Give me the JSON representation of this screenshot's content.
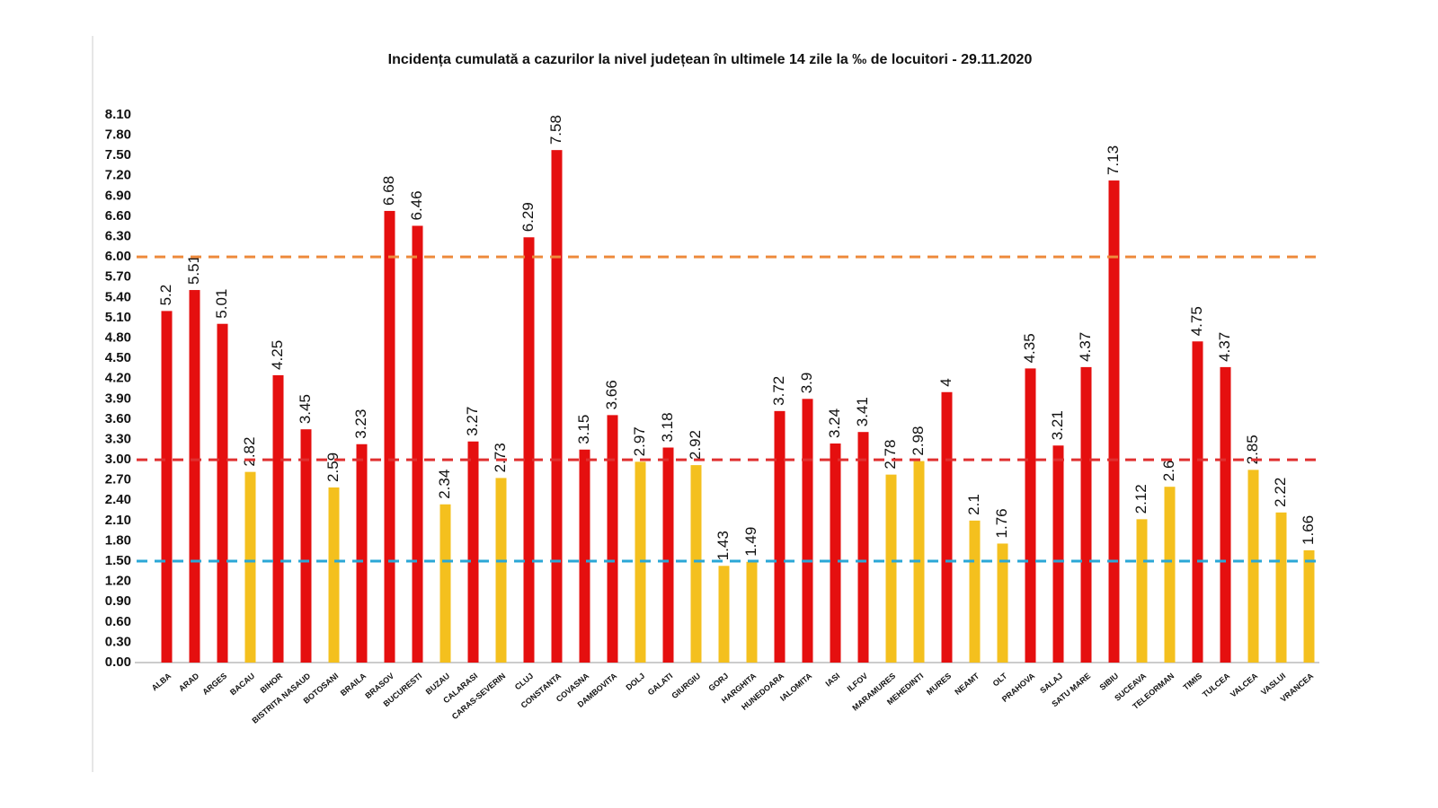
{
  "chart_data": {
    "type": "bar",
    "title": "Incidența cumulată a cazurilor la nivel județean în ultimele 14 zile la ‰ de locuitori - 29.11.2020",
    "categories": [
      "ALBA",
      "ARAD",
      "ARGES",
      "BACAU",
      "BIHOR",
      "BISTRITA NASAUD",
      "BOTOSANI",
      "BRAILA",
      "BRASOV",
      "BUCURESTI",
      "BUZAU",
      "CALARASI",
      "CARAS-SEVERIN",
      "CLUJ",
      "CONSTANTA",
      "COVASNA",
      "DAMBOVITA",
      "DOLJ",
      "GALATI",
      "GIURGIU",
      "GORJ",
      "HARGHITA",
      "HUNEDOARA",
      "IALOMITA",
      "IASI",
      "ILFOV",
      "MARAMURES",
      "MEHEDINTI",
      "MURES",
      "NEAMT",
      "OLT",
      "PRAHOVA",
      "SALAJ",
      "SATU MARE",
      "SIBIU",
      "SUCEAVA",
      "TELEORMAN",
      "TIMIS",
      "TULCEA",
      "VALCEA",
      "VASLUI",
      "VRANCEA"
    ],
    "values": [
      5.2,
      5.51,
      5.01,
      2.82,
      4.25,
      3.45,
      2.59,
      3.23,
      6.68,
      6.46,
      2.34,
      3.27,
      2.73,
      6.29,
      7.58,
      3.15,
      3.66,
      2.97,
      3.18,
      2.92,
      1.43,
      1.49,
      3.72,
      3.9,
      3.24,
      3.41,
      2.78,
      2.98,
      4,
      2.1,
      1.76,
      4.35,
      3.21,
      4.37,
      7.13,
      2.12,
      2.6,
      4.75,
      4.37,
      2.85,
      2.22,
      1.66
    ],
    "colors": [
      "#e50f0f",
      "#e50f0f",
      "#e50f0f",
      "#f4c01e",
      "#e50f0f",
      "#e50f0f",
      "#f4c01e",
      "#e50f0f",
      "#e50f0f",
      "#e50f0f",
      "#f4c01e",
      "#e50f0f",
      "#f4c01e",
      "#e50f0f",
      "#e50f0f",
      "#e50f0f",
      "#e50f0f",
      "#f4c01e",
      "#e50f0f",
      "#f4c01e",
      "#f4c01e",
      "#f4c01e",
      "#e50f0f",
      "#e50f0f",
      "#e50f0f",
      "#e50f0f",
      "#f4c01e",
      "#f4c01e",
      "#e50f0f",
      "#f4c01e",
      "#f4c01e",
      "#e50f0f",
      "#e50f0f",
      "#e50f0f",
      "#e50f0f",
      "#f4c01e",
      "#f4c01e",
      "#e50f0f",
      "#e50f0f",
      "#f4c01e",
      "#f4c01e",
      "#f4c01e"
    ],
    "ylim": [
      0,
      8.1
    ],
    "yticks": [
      {
        "value": 0,
        "label": "0.00"
      },
      {
        "value": 0.3,
        "label": "0.30"
      },
      {
        "value": 0.6,
        "label": "0.60"
      },
      {
        "value": 0.9,
        "label": "0.90"
      },
      {
        "value": 1.2,
        "label": "1.20"
      },
      {
        "value": 1.5,
        "label": "1.50"
      },
      {
        "value": 1.8,
        "label": "1.80"
      },
      {
        "value": 2.1,
        "label": "2.10"
      },
      {
        "value": 2.4,
        "label": "2.40"
      },
      {
        "value": 2.7,
        "label": "2.70"
      },
      {
        "value": 3,
        "label": "3.00"
      },
      {
        "value": 3.3,
        "label": "3.30"
      },
      {
        "value": 3.6,
        "label": "3.60"
      },
      {
        "value": 3.9,
        "label": "3.90"
      },
      {
        "value": 4.2,
        "label": "4.20"
      },
      {
        "value": 4.5,
        "label": "4.50"
      },
      {
        "value": 4.8,
        "label": "4.80"
      },
      {
        "value": 5.1,
        "label": "5.10"
      },
      {
        "value": 5.4,
        "label": "5.40"
      },
      {
        "value": 5.7,
        "label": "5.70"
      },
      {
        "value": 6,
        "label": "6.00"
      },
      {
        "value": 6.3,
        "label": "6.30"
      },
      {
        "value": 6.6,
        "label": "6.60"
      },
      {
        "value": 6.9,
        "label": "6.90"
      },
      {
        "value": 7.2,
        "label": "7.20"
      },
      {
        "value": 7.5,
        "label": "7.50"
      },
      {
        "value": 7.8,
        "label": "7.80"
      },
      {
        "value": 8.1,
        "label": "8.10"
      }
    ],
    "reference_lines": [
      {
        "value": 6,
        "color": "#ee8a3c"
      },
      {
        "value": 3,
        "color": "#e03030"
      },
      {
        "value": 1.5,
        "color": "#2aa7d6"
      }
    ],
    "grid": false
  }
}
